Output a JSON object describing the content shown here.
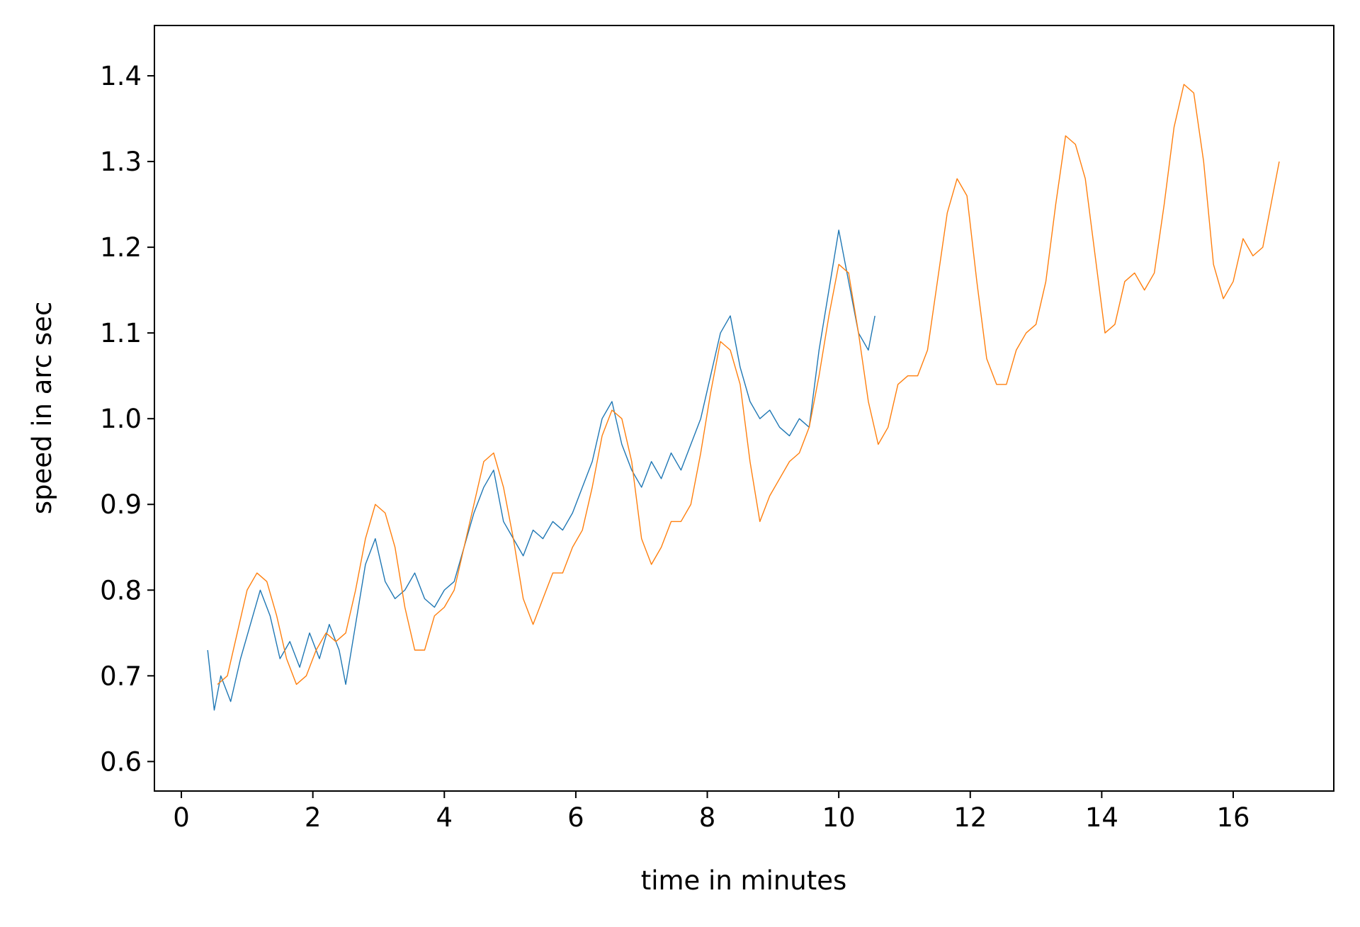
{
  "chart_data": {
    "type": "line",
    "xlabel": "time in minutes",
    "ylabel": "speed in arc sec",
    "xlim": [
      -0.41,
      17.53
    ],
    "ylim": [
      0.5656,
      1.4587
    ],
    "xticks": [
      0,
      2,
      4,
      6,
      8,
      10,
      12,
      14,
      16
    ],
    "yticks": [
      0.6,
      0.7,
      0.8,
      0.9,
      {
        "value": 1.0,
        "label": "1.0"
      },
      1.1,
      1.2,
      1.3,
      1.4
    ],
    "grid": false,
    "series": [
      {
        "color": "#1f77b4",
        "x": [
          0.4,
          0.5,
          0.6,
          0.75,
          0.9,
          1.05,
          1.2,
          1.35,
          1.5,
          1.65,
          1.8,
          1.95,
          2.1,
          2.25,
          2.4,
          2.5,
          2.65,
          2.8,
          2.95,
          3.1,
          3.25,
          3.4,
          3.55,
          3.7,
          3.85,
          4.0,
          4.15,
          4.3,
          4.45,
          4.6,
          4.75,
          4.9,
          5.05,
          5.2,
          5.35,
          5.5,
          5.65,
          5.8,
          5.95,
          6.1,
          6.25,
          6.4,
          6.55,
          6.7,
          6.85,
          7.0,
          7.15,
          7.3,
          7.45,
          7.6,
          7.75,
          7.9,
          8.05,
          8.2,
          8.35,
          8.5,
          8.65,
          8.8,
          8.95,
          9.1,
          9.25,
          9.4,
          9.55,
          9.7,
          9.85,
          10.0,
          10.15,
          10.3,
          10.45,
          10.55
        ],
        "values": [
          0.73,
          0.66,
          0.7,
          0.67,
          0.72,
          0.76,
          0.8,
          0.77,
          0.72,
          0.74,
          0.71,
          0.75,
          0.72,
          0.76,
          0.73,
          0.69,
          0.76,
          0.83,
          0.86,
          0.81,
          0.79,
          0.8,
          0.82,
          0.79,
          0.78,
          0.8,
          0.81,
          0.85,
          0.89,
          0.92,
          0.94,
          0.88,
          0.86,
          0.84,
          0.87,
          0.86,
          0.88,
          0.87,
          0.89,
          0.92,
          0.95,
          1.0,
          1.02,
          0.97,
          0.94,
          0.92,
          0.95,
          0.93,
          0.96,
          0.94,
          0.97,
          1.0,
          1.05,
          1.1,
          1.12,
          1.06,
          1.02,
          1.0,
          1.01,
          0.99,
          0.98,
          1.0,
          0.99,
          1.08,
          1.15,
          1.22,
          1.16,
          1.1,
          1.08,
          1.12
        ]
      },
      {
        "color": "#ff7f0e",
        "x": [
          0.55,
          0.7,
          0.85,
          1.0,
          1.15,
          1.3,
          1.45,
          1.6,
          1.75,
          1.9,
          2.05,
          2.2,
          2.35,
          2.5,
          2.65,
          2.8,
          2.95,
          3.1,
          3.25,
          3.4,
          3.55,
          3.7,
          3.85,
          4.0,
          4.15,
          4.3,
          4.45,
          4.6,
          4.75,
          4.9,
          5.05,
          5.2,
          5.35,
          5.5,
          5.65,
          5.8,
          5.95,
          6.1,
          6.25,
          6.4,
          6.55,
          6.7,
          6.85,
          7.0,
          7.15,
          7.3,
          7.45,
          7.6,
          7.75,
          7.9,
          8.05,
          8.2,
          8.35,
          8.5,
          8.65,
          8.8,
          8.95,
          9.1,
          9.25,
          9.4,
          9.55,
          9.7,
          9.85,
          10.0,
          10.15,
          10.3,
          10.45,
          10.6,
          10.75,
          10.9,
          11.05,
          11.2,
          11.35,
          11.5,
          11.65,
          11.8,
          11.95,
          12.1,
          12.25,
          12.4,
          12.55,
          12.7,
          12.85,
          13.0,
          13.15,
          13.3,
          13.45,
          13.6,
          13.75,
          13.9,
          14.05,
          14.2,
          14.35,
          14.5,
          14.65,
          14.8,
          14.95,
          15.1,
          15.25,
          15.4,
          15.55,
          15.7,
          15.85,
          16.0,
          16.15,
          16.3,
          16.45,
          16.6,
          16.7
        ],
        "values": [
          0.69,
          0.7,
          0.75,
          0.8,
          0.82,
          0.81,
          0.77,
          0.72,
          0.69,
          0.7,
          0.73,
          0.75,
          0.74,
          0.75,
          0.8,
          0.86,
          0.9,
          0.89,
          0.85,
          0.78,
          0.73,
          0.73,
          0.77,
          0.78,
          0.8,
          0.85,
          0.9,
          0.95,
          0.96,
          0.92,
          0.86,
          0.79,
          0.76,
          0.79,
          0.82,
          0.82,
          0.85,
          0.87,
          0.92,
          0.98,
          1.01,
          1.0,
          0.95,
          0.86,
          0.83,
          0.85,
          0.88,
          0.88,
          0.9,
          0.96,
          1.03,
          1.09,
          1.08,
          1.04,
          0.95,
          0.88,
          0.91,
          0.93,
          0.95,
          0.96,
          0.99,
          1.05,
          1.12,
          1.18,
          1.17,
          1.1,
          1.02,
          0.97,
          0.99,
          1.04,
          1.05,
          1.05,
          1.08,
          1.16,
          1.24,
          1.28,
          1.26,
          1.16,
          1.07,
          1.04,
          1.04,
          1.08,
          1.1,
          1.11,
          1.16,
          1.25,
          1.33,
          1.32,
          1.28,
          1.19,
          1.1,
          1.11,
          1.16,
          1.17,
          1.15,
          1.17,
          1.25,
          1.34,
          1.39,
          1.38,
          1.3,
          1.18,
          1.14,
          1.16,
          1.21,
          1.19,
          1.2,
          1.26,
          1.3
        ]
      }
    ]
  }
}
